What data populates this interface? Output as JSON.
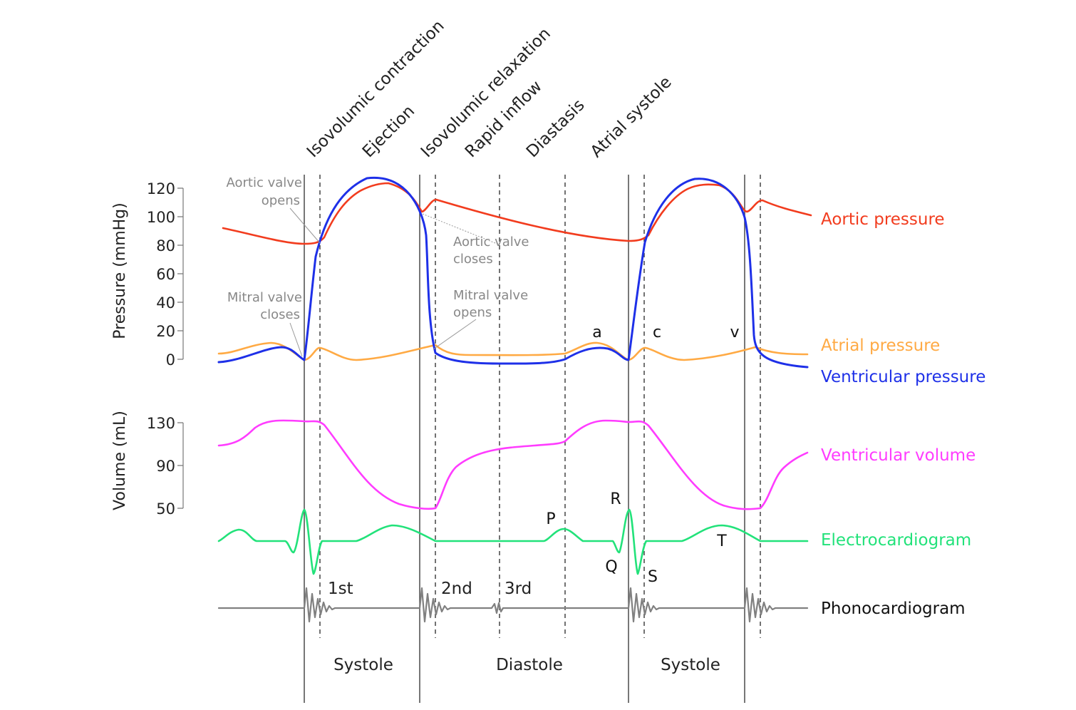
{
  "phases": [
    "Isovolumic contraction",
    "Ejection",
    "Isovolumic relaxation",
    "Rapid inflow",
    "Diastasis",
    "Atrial systole"
  ],
  "pressure_axis": {
    "title": "Pressure (mmHg)",
    "ticks": [
      "120",
      "100",
      "80",
      "60",
      "40",
      "20",
      "0"
    ]
  },
  "volume_axis": {
    "title": "Volume (mL)",
    "ticks": [
      "130",
      "90",
      "50"
    ]
  },
  "series": {
    "aortic_pressure": {
      "label": "Aortic pressure",
      "color": "#f23c1e"
    },
    "atrial_pressure": {
      "label": "Atrial pressure",
      "color": "#ffaa44"
    },
    "ventricular_pressure": {
      "label": "Ventricular pressure",
      "color": "#1e30e8"
    },
    "ventricular_volume": {
      "label": "Ventricular volume",
      "color": "#ff3cff"
    },
    "electrocardiogram": {
      "label": "Electrocardiogram",
      "color": "#22e27a"
    },
    "phonocardiogram": {
      "label": "Phonocardiogram",
      "color": "#808080"
    }
  },
  "annotations": {
    "aortic_opens": [
      "Aortic valve",
      "opens"
    ],
    "aortic_closes": [
      "Aortic valve",
      "closes"
    ],
    "mitral_closes": [
      "Mitral valve",
      "closes"
    ],
    "mitral_opens": [
      "Mitral valve",
      "opens"
    ]
  },
  "wave_labels": {
    "a": "a",
    "c": "c",
    "v": "v",
    "P": "P",
    "Q": "Q",
    "R": "R",
    "S": "S",
    "T": "T"
  },
  "heart_sounds": [
    "1st",
    "2nd",
    "3rd"
  ],
  "periods": [
    "Systole",
    "Diastole",
    "Systole"
  ]
}
